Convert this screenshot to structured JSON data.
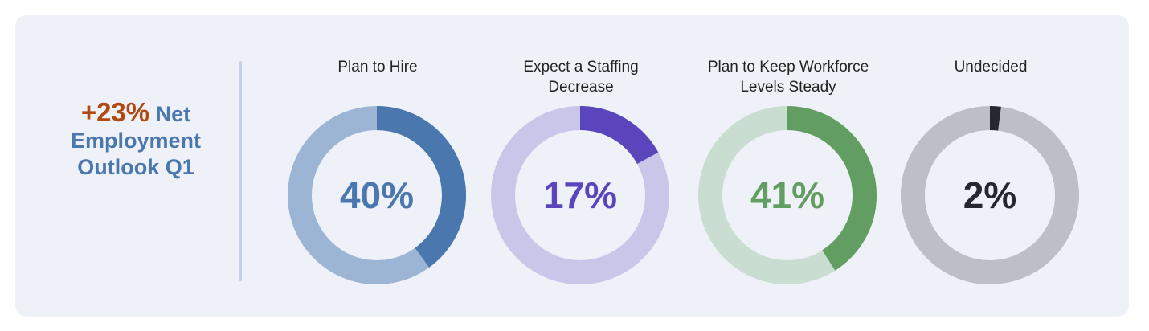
{
  "headline": {
    "net_value": "+23%",
    "text_line1": "Net",
    "text_line2": "Employment",
    "text_line3": "Outlook Q1",
    "net_color": "#b04a10",
    "text_color": "#4a77ad"
  },
  "chart_data": {
    "type": "pie",
    "style": "donut",
    "charts": [
      {
        "title": "Plan to Hire",
        "value": 40,
        "label": "40%",
        "color": "#4a77ae",
        "track_color": "#9db5d4",
        "text_color": "#4a77ae"
      },
      {
        "title": "Expect a Staffing\nDecrease",
        "value": 17,
        "label": "17%",
        "color": "#5b45bd",
        "track_color": "#c9c6ea",
        "text_color": "#5b45bd"
      },
      {
        "title": "Plan to Keep Workforce\nLevels Steady",
        "value": 41,
        "label": "41%",
        "color": "#629d61",
        "track_color": "#c9ddd0",
        "text_color": "#629d61"
      },
      {
        "title": "Undecided",
        "value": 2,
        "label": "2%",
        "color": "#25282e",
        "track_color": "#bcbfc5",
        "text_color": "#25282e"
      }
    ]
  }
}
